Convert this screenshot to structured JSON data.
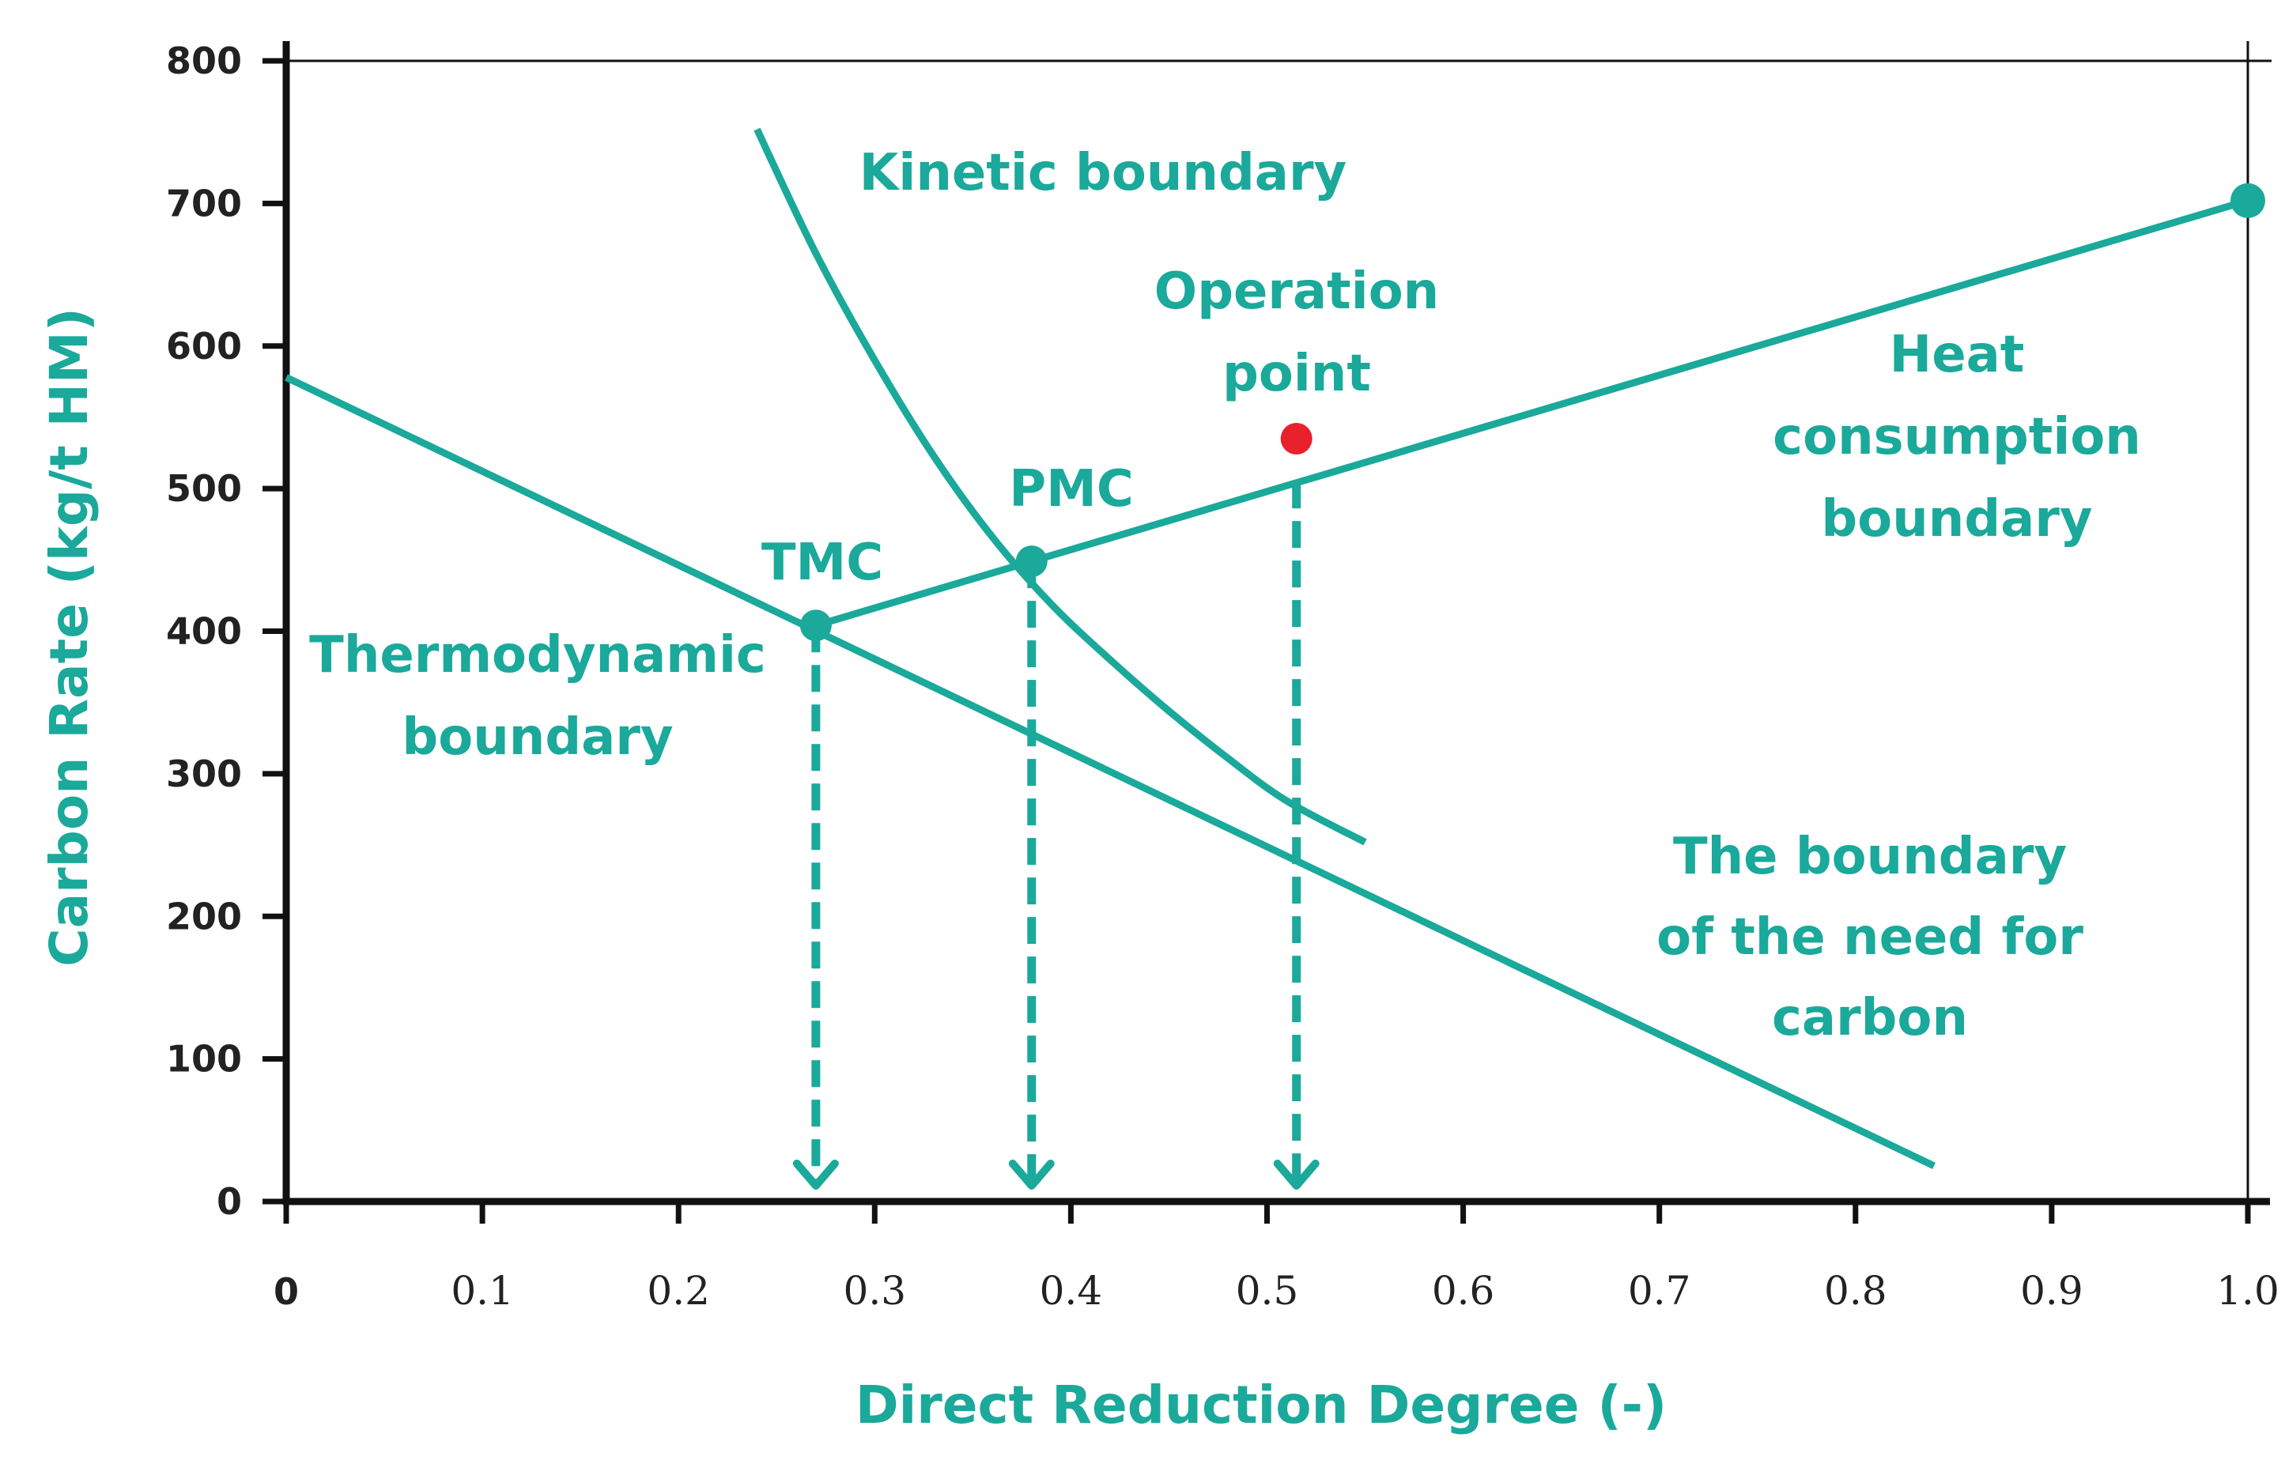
{
  "chart_data": {
    "type": "line",
    "xlabel": "Direct Reduction Degree (-)",
    "ylabel": "Carbon Rate  (kg/t HM)",
    "xlim": [
      0,
      1.0
    ],
    "ylim": [
      0,
      800
    ],
    "x_ticks": [
      "0",
      "0.1",
      "0.2",
      "0.3",
      "0.4",
      "0.5",
      "0.6",
      "0.7",
      "0.8",
      "0.9",
      "1.0"
    ],
    "y_ticks": [
      "0",
      "100",
      "200",
      "300",
      "400",
      "500",
      "600",
      "700",
      "800"
    ],
    "grid": false,
    "series": [
      {
        "key": "need_for_carbon",
        "x": [
          0,
          0.84
        ],
        "y": [
          578,
          25
        ]
      },
      {
        "key": "heat_consumption",
        "x": [
          0.27,
          0.38,
          1.0
        ],
        "y": [
          404,
          449,
          702
        ]
      },
      {
        "key": "kinetic",
        "x": [
          0.24,
          0.27,
          0.3,
          0.33,
          0.36,
          0.39,
          0.42,
          0.45,
          0.48,
          0.51,
          0.55
        ],
        "y": [
          752,
          665,
          590,
          523,
          466,
          419,
          380,
          344,
          311,
          281,
          252
        ]
      }
    ],
    "markers": [
      {
        "key": "tmc",
        "x": 0.27,
        "y": 404,
        "color": "#1aa99a"
      },
      {
        "key": "pmc",
        "x": 0.38,
        "y": 449,
        "color": "#1aa99a"
      },
      {
        "key": "heat_end",
        "x": 1.0,
        "y": 702,
        "color": "#1aa99a"
      },
      {
        "key": "operation",
        "x": 0.515,
        "y": 535,
        "color": "#e8212a"
      }
    ],
    "drop_lines": [
      {
        "x": 0.27,
        "y_from": 404
      },
      {
        "x": 0.38,
        "y_from": 449
      },
      {
        "x": 0.515,
        "y_from": 505
      }
    ],
    "annotations": {
      "kinetic": [
        "Kinetic boundary"
      ],
      "operation": [
        "Operation",
        "point"
      ],
      "heat": [
        "Heat",
        "consumption",
        "boundary"
      ],
      "pmc": [
        "PMC"
      ],
      "tmc": [
        "TMC"
      ],
      "thermo": [
        "Thermodynamic",
        "boundary"
      ],
      "need": [
        "The boundary",
        "of the need for",
        "carbon"
      ]
    },
    "colors": {
      "accent": "#1aa99a",
      "operation_point": "#e8212a",
      "axis": "#111111",
      "tick_text": "#222222"
    }
  }
}
